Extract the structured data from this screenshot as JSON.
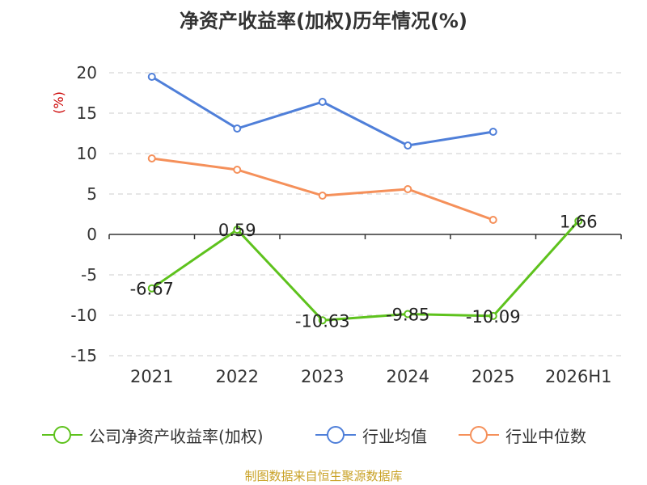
{
  "title": "净资产收益率(加权)历年情况(%)",
  "source_note": "制图数据来自恒生聚源数据库",
  "colors": {
    "company": "#5ec21d",
    "industry_avg": "#4f7fd9",
    "industry_median": "#f5905a",
    "grid": "#cccccc",
    "axis": "#333333",
    "unit": "#cc0000"
  },
  "chart_data": {
    "type": "line",
    "title": "净资产收益率(加权)历年情况(%)",
    "ylabel": "(%)",
    "categories": [
      "2021",
      "2022",
      "2023",
      "2024",
      "2025",
      "2026H1"
    ],
    "ylim": [
      -15,
      20
    ],
    "yticks": [
      20,
      15,
      10,
      5,
      0,
      -5,
      -10,
      -15
    ],
    "grid": true,
    "legend_position": "bottom",
    "series": [
      {
        "name": "公司净资产收益率(加权)",
        "color": "#5ec21d",
        "values": [
          -6.67,
          0.59,
          -10.63,
          -9.85,
          -10.09,
          1.66
        ],
        "labels": [
          "-6.67",
          "0.59",
          "-10.63",
          "-9.85",
          "-10.09",
          "1.66"
        ]
      },
      {
        "name": "行业均值",
        "color": "#4f7fd9",
        "values": [
          19.5,
          13.1,
          16.4,
          11.0,
          12.7,
          null
        ]
      },
      {
        "name": "行业中位数",
        "color": "#f5905a",
        "values": [
          9.4,
          8.0,
          4.8,
          5.6,
          1.8,
          null
        ]
      }
    ]
  }
}
